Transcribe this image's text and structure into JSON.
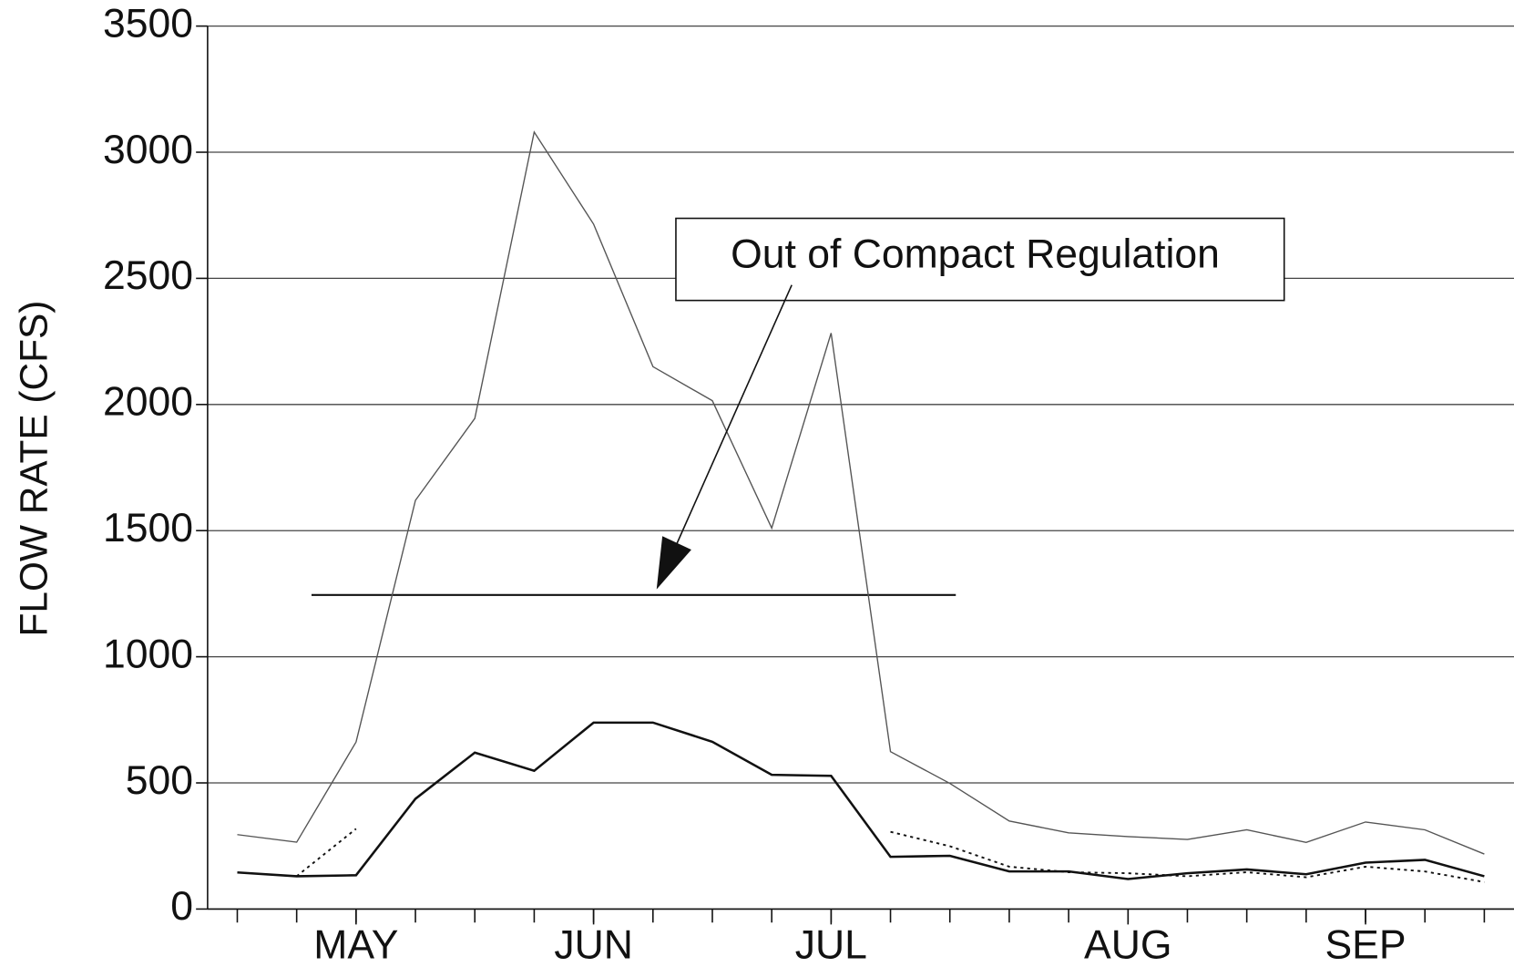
{
  "chart_data": {
    "type": "line",
    "y_label": "FLOW RATE (CFS)",
    "annotation": "Out of Compact Regulation",
    "x": [
      0,
      1,
      2,
      3,
      4,
      5,
      6,
      7,
      8,
      9,
      10,
      11,
      12,
      13,
      14,
      15,
      16,
      17,
      18,
      19,
      20,
      21
    ],
    "xlim": [
      -0.5,
      21.5
    ],
    "xticks": [
      {
        "value": 2,
        "label": "MAY"
      },
      {
        "value": 6,
        "label": "JUN"
      },
      {
        "value": 10,
        "label": "JUL"
      },
      {
        "value": 15,
        "label": "AUG"
      },
      {
        "value": 19,
        "label": "SEP"
      }
    ],
    "minor_xticks": [
      0,
      1,
      2,
      3,
      4,
      5,
      6,
      7,
      8,
      9,
      10,
      11,
      12,
      13,
      14,
      15,
      16,
      17,
      18,
      19,
      20,
      21
    ],
    "ylim": [
      0,
      3500
    ],
    "yticks": [
      0,
      500,
      1000,
      1500,
      2000,
      2500,
      3000,
      3500
    ],
    "grid": true,
    "series": [
      {
        "color": "#555555",
        "width": 1.3,
        "dash": false,
        "values": [
          295,
          265,
          662,
          1620,
          1945,
          3080,
          2715,
          2150,
          2015,
          1510,
          2283,
          624,
          498,
          349,
          302,
          287,
          276,
          314,
          264,
          345,
          314,
          218
        ]
      },
      {
        "color": "#111111",
        "width": 2.4,
        "dash": false,
        "values": [
          145,
          130,
          134,
          437,
          620,
          548,
          739,
          739,
          663,
          532,
          528,
          207,
          211,
          149,
          149,
          119,
          142,
          157,
          138,
          184,
          195,
          130
        ]
      },
      {
        "color": "#111111",
        "width": 1.8,
        "dash": true,
        "values": [
          null,
          130,
          318,
          null,
          null,
          null,
          null,
          null,
          null,
          null,
          null,
          306,
          249,
          168,
          146,
          142,
          130,
          146,
          126,
          168,
          149,
          107
        ]
      }
    ],
    "reference_line": {
      "value": 1245,
      "x": [
        1.25,
        12.1
      ],
      "color": "#111111"
    }
  }
}
